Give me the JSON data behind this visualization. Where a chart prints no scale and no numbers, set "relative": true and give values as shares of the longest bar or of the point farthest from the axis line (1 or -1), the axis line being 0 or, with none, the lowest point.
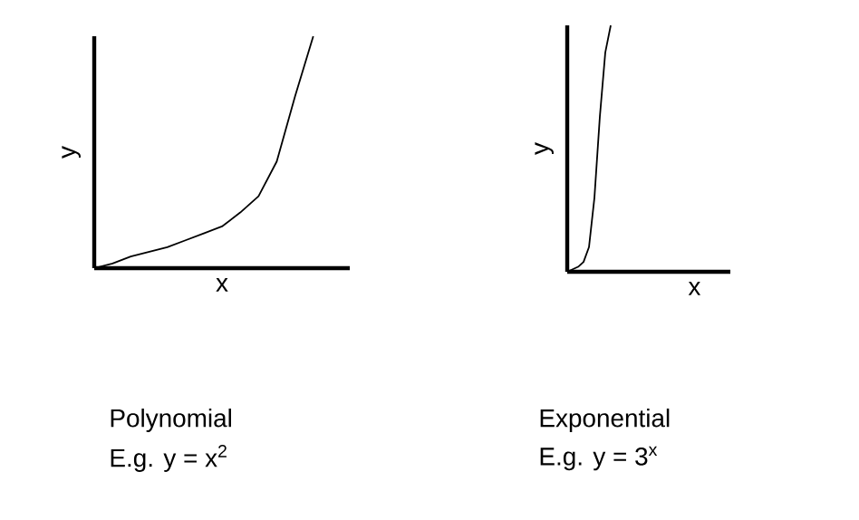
{
  "chart_data": [
    {
      "type": "line",
      "relative": true,
      "xlabel": "x",
      "ylabel": "y",
      "categories": [
        null,
        null,
        null,
        null,
        null,
        null,
        null,
        null,
        null,
        null,
        null,
        null,
        null,
        null,
        null
      ],
      "series": [
        {
          "color": "#000000",
          "values": [
            0,
            0.02,
            0.05,
            0.07,
            0.09,
            0.12,
            0.15,
            0.18,
            0.24,
            0.31,
            0.46,
            0.74,
            1.0,
            null,
            null
          ]
        }
      ],
      "annotations": [
        "Polynomial",
        "E.g. y = x$^{2}$"
      ]
    },
    {
      "type": "line",
      "relative": true,
      "xlabel": "x",
      "ylabel": "y",
      "categories": [
        null,
        null,
        null,
        null,
        null,
        null,
        null,
        null,
        null,
        null,
        null,
        null,
        null,
        null,
        null,
        null,
        null,
        null,
        null,
        null,
        null,
        null,
        null,
        null,
        null,
        null,
        null,
        null,
        null,
        null,
        null
      ],
      "series": [
        {
          "color": "#000000",
          "values": [
            0,
            0.01,
            0.02,
            0.04,
            0.1,
            0.3,
            0.63,
            0.89,
            1.0,
            null,
            null,
            null,
            null,
            null,
            null,
            null,
            null,
            null,
            null,
            null,
            null,
            null,
            null,
            null,
            null,
            null,
            null,
            null,
            null,
            null,
            null
          ]
        }
      ],
      "annotations": [
        "Exponential",
        "E.g. y = 3$^{x}$"
      ]
    }
  ]
}
